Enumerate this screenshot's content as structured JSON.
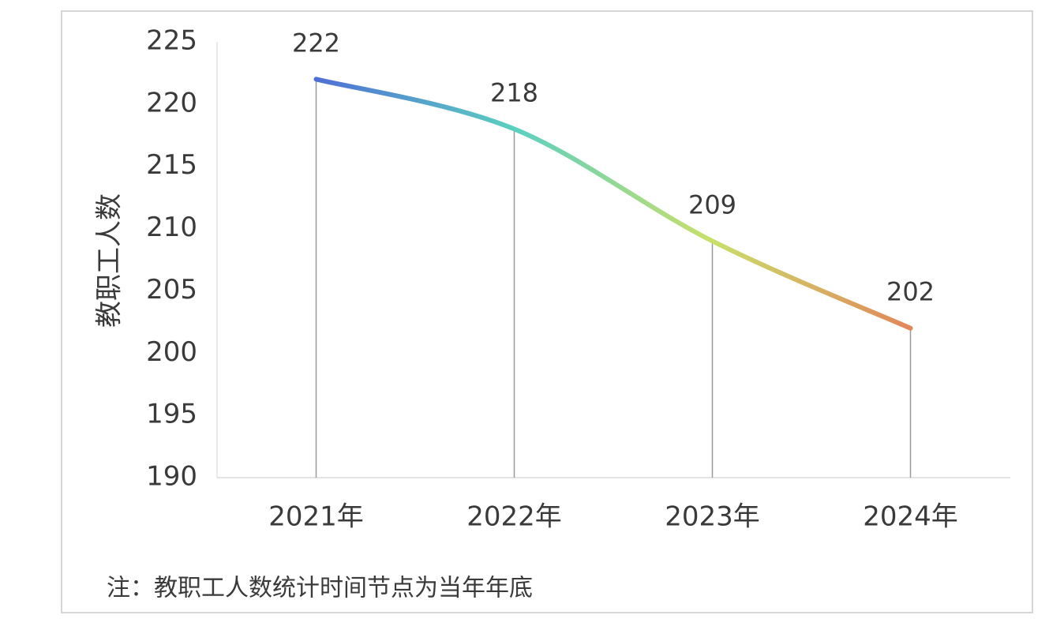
{
  "chart_data": {
    "type": "line",
    "y_axis_label": "教职工人数",
    "categories": [
      "2021年",
      "2022年",
      "2023年",
      "2024年"
    ],
    "values": [
      222,
      218,
      209,
      202
    ],
    "ylim": [
      190,
      225
    ],
    "yticks": [
      190,
      195,
      200,
      205,
      210,
      215,
      220,
      225
    ],
    "line_gradient": [
      "#4f6fd6",
      "#5ad0c0",
      "#c9e06a",
      "#e2865a"
    ],
    "drop_lines": true,
    "note": "注：教职工人数统计时间节点为当年年底"
  }
}
